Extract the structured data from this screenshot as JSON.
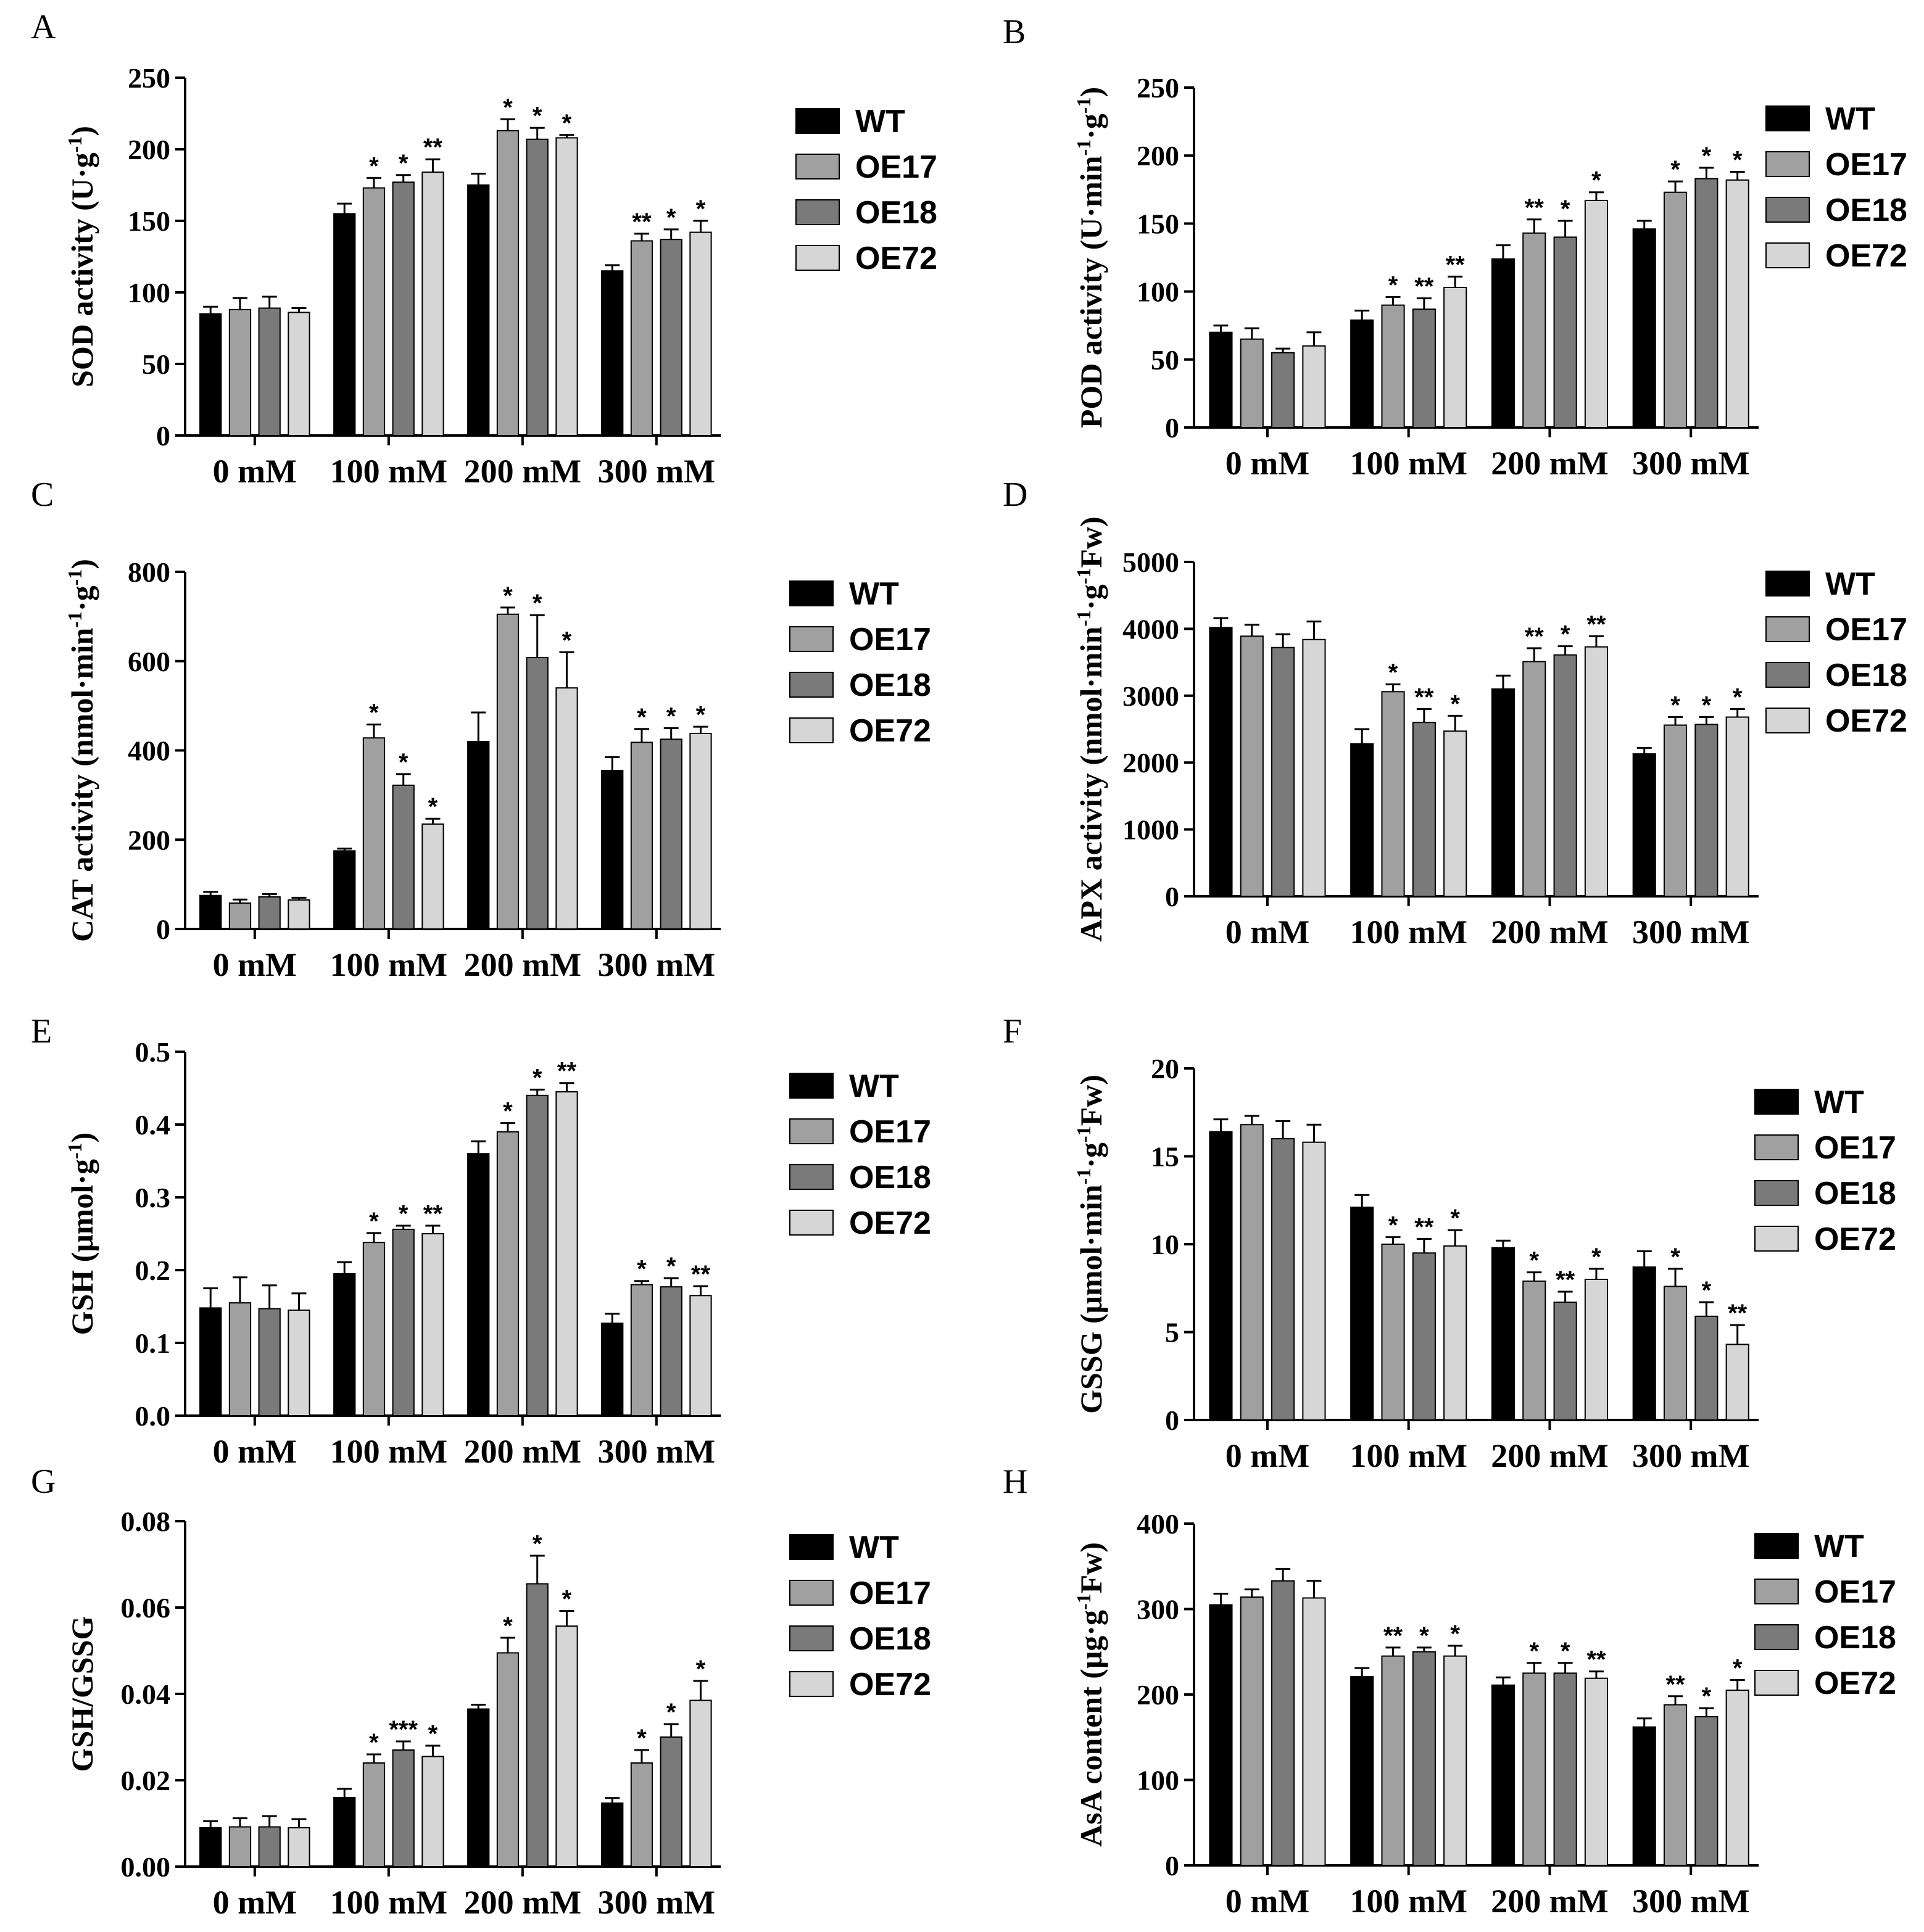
{
  "figure": {
    "legend_labels": [
      "WT",
      "OE17",
      "OE18",
      "OE72"
    ],
    "colors": {
      "WT": "#000000",
      "OE17": "#a0a0a0",
      "OE18": "#7a7a7a",
      "OE72": "#d6d6d6"
    }
  },
  "chart_data": [
    {
      "type": "bar",
      "letter": "A",
      "ylabel": "SOD activity (U·g-1)",
      "ylabel_parts": [
        {
          "t": "SOD activity (U·g"
        },
        {
          "t": "-1",
          "sup": true
        },
        {
          "t": ")"
        }
      ],
      "categories": [
        "0 mM",
        "100 mM",
        "200 mM",
        "300 mM"
      ],
      "ylim": [
        0,
        250
      ],
      "yticks": [
        "0",
        "50",
        "100",
        "150",
        "200",
        "250"
      ],
      "series": [
        {
          "name": "WT",
          "values": [
            85,
            155,
            175,
            115
          ],
          "errors": [
            5,
            7,
            8,
            4
          ],
          "sig": [
            "",
            "",
            "",
            ""
          ]
        },
        {
          "name": "OE17",
          "values": [
            88,
            173,
            213,
            136
          ],
          "errors": [
            8,
            7,
            8,
            5
          ],
          "sig": [
            "",
            "*",
            "*",
            "**"
          ]
        },
        {
          "name": "OE18",
          "values": [
            89,
            177,
            207,
            137
          ],
          "errors": [
            8,
            5,
            8,
            7
          ],
          "sig": [
            "",
            "*",
            "*",
            "*"
          ]
        },
        {
          "name": "OE72",
          "values": [
            86,
            184,
            208,
            142
          ],
          "errors": [
            3,
            9,
            2,
            8
          ],
          "sig": [
            "",
            "**",
            "*",
            "*"
          ]
        }
      ]
    },
    {
      "type": "bar",
      "letter": "B",
      "ylabel": "POD activity (U·min-1·g-1)",
      "ylabel_parts": [
        {
          "t": "POD activity (U·min"
        },
        {
          "t": "-1",
          "sup": true
        },
        {
          "t": "·g"
        },
        {
          "t": "-1",
          "sup": true
        },
        {
          "t": ")"
        }
      ],
      "categories": [
        "0 mM",
        "100 mM",
        "200 mM",
        "300 mM"
      ],
      "ylim": [
        0,
        250
      ],
      "yticks": [
        "0",
        "50",
        "100",
        "150",
        "200",
        "250"
      ],
      "series": [
        {
          "name": "WT",
          "values": [
            70,
            79,
            124,
            146
          ],
          "errors": [
            5,
            7,
            10,
            6
          ],
          "sig": [
            "",
            "",
            "",
            ""
          ]
        },
        {
          "name": "OE17",
          "values": [
            65,
            90,
            143,
            173
          ],
          "errors": [
            8,
            6,
            10,
            8
          ],
          "sig": [
            "",
            "*",
            "**",
            "*"
          ]
        },
        {
          "name": "OE18",
          "values": [
            55,
            87,
            140,
            183
          ],
          "errors": [
            3,
            8,
            12,
            8
          ],
          "sig": [
            "",
            "**",
            "*",
            "*"
          ]
        },
        {
          "name": "OE72",
          "values": [
            60,
            103,
            167,
            182
          ],
          "errors": [
            10,
            8,
            6,
            6
          ],
          "sig": [
            "",
            "**",
            "*",
            "*"
          ]
        }
      ]
    },
    {
      "type": "bar",
      "letter": "C",
      "ylabel": "CAT activity (nmol·min-1·g-1)",
      "ylabel_parts": [
        {
          "t": "CAT activity (nmol·min"
        },
        {
          "t": "-1",
          "sup": true
        },
        {
          "t": "·g"
        },
        {
          "t": "-1",
          "sup": true
        },
        {
          "t": ")"
        }
      ],
      "categories": [
        "0 mM",
        "100 mM",
        "200 mM",
        "300 mM"
      ],
      "ylim": [
        0,
        800
      ],
      "yticks": [
        "0",
        "200",
        "400",
        "600",
        "800"
      ],
      "series": [
        {
          "name": "WT",
          "values": [
            75,
            175,
            420,
            355
          ],
          "errors": [
            8,
            5,
            65,
            30
          ],
          "sig": [
            "",
            "",
            "",
            ""
          ]
        },
        {
          "name": "OE17",
          "values": [
            58,
            428,
            705,
            418
          ],
          "errors": [
            8,
            30,
            15,
            30
          ],
          "sig": [
            "",
            "*",
            "*",
            "*"
          ]
        },
        {
          "name": "OE18",
          "values": [
            72,
            322,
            608,
            425
          ],
          "errors": [
            6,
            25,
            95,
            25
          ],
          "sig": [
            "",
            "*",
            "*",
            "*"
          ]
        },
        {
          "name": "OE72",
          "values": [
            65,
            235,
            540,
            438
          ],
          "errors": [
            5,
            12,
            80,
            15
          ],
          "sig": [
            "",
            "*",
            "*",
            "*"
          ]
        }
      ]
    },
    {
      "type": "bar",
      "letter": "D",
      "ylabel": "APX activity (nmol·min-1·g-1Fw)",
      "ylabel_parts": [
        {
          "t": "APX activity (nmol·min"
        },
        {
          "t": "-1",
          "sup": true
        },
        {
          "t": "·g"
        },
        {
          "t": "-1",
          "sup": true
        },
        {
          "t": "Fw)"
        }
      ],
      "categories": [
        "0 mM",
        "100 mM",
        "200 mM",
        "300 mM"
      ],
      "ylim": [
        0,
        5000
      ],
      "yticks": [
        "0",
        "1000",
        "2000",
        "3000",
        "4000",
        "5000"
      ],
      "series": [
        {
          "name": "WT",
          "values": [
            4020,
            2280,
            3100,
            2130
          ],
          "errors": [
            140,
            220,
            200,
            90
          ],
          "sig": [
            "",
            "",
            "",
            ""
          ]
        },
        {
          "name": "OE17",
          "values": [
            3890,
            3060,
            3510,
            2560
          ],
          "errors": [
            170,
            110,
            200,
            120
          ],
          "sig": [
            "",
            "*",
            "**",
            "*"
          ]
        },
        {
          "name": "OE18",
          "values": [
            3720,
            2600,
            3610,
            2570
          ],
          "errors": [
            200,
            200,
            130,
            110
          ],
          "sig": [
            "",
            "**",
            "*",
            "*"
          ]
        },
        {
          "name": "OE72",
          "values": [
            3840,
            2470,
            3730,
            2680
          ],
          "errors": [
            270,
            230,
            160,
            120
          ],
          "sig": [
            "",
            "*",
            "**",
            "*"
          ]
        }
      ]
    },
    {
      "type": "bar",
      "letter": "E",
      "ylabel": "GSH (μmol·g-1)",
      "ylabel_parts": [
        {
          "t": "GSH (μmol·g"
        },
        {
          "t": "-1",
          "sup": true
        },
        {
          "t": ")"
        }
      ],
      "categories": [
        "0 mM",
        "100 mM",
        "200 mM",
        "300 mM"
      ],
      "ylim": [
        0,
        0.5
      ],
      "yticks": [
        "0.0",
        "0.1",
        "0.2",
        "0.3",
        "0.4",
        "0.5"
      ],
      "series": [
        {
          "name": "WT",
          "values": [
            0.148,
            0.195,
            0.36,
            0.127
          ],
          "errors": [
            0.027,
            0.016,
            0.017,
            0.013
          ],
          "sig": [
            "",
            "",
            "",
            ""
          ]
        },
        {
          "name": "OE17",
          "values": [
            0.155,
            0.238,
            0.39,
            0.18
          ],
          "errors": [
            0.035,
            0.013,
            0.012,
            0.005
          ],
          "sig": [
            "",
            "*",
            "*",
            "*"
          ]
        },
        {
          "name": "OE18",
          "values": [
            0.147,
            0.256,
            0.44,
            0.177
          ],
          "errors": [
            0.032,
            0.005,
            0.008,
            0.012
          ],
          "sig": [
            "",
            "*",
            "*",
            "*"
          ]
        },
        {
          "name": "OE72",
          "values": [
            0.145,
            0.25,
            0.445,
            0.165
          ],
          "errors": [
            0.023,
            0.011,
            0.012,
            0.013
          ],
          "sig": [
            "",
            "**",
            "**",
            "**"
          ]
        }
      ]
    },
    {
      "type": "bar",
      "letter": "F",
      "ylabel": "GSSG (μmol·min-1·g-1Fw)",
      "ylabel_parts": [
        {
          "t": "GSSG (μmol·min"
        },
        {
          "t": "-1",
          "sup": true
        },
        {
          "t": "·g"
        },
        {
          "t": "-1",
          "sup": true
        },
        {
          "t": "Fw)"
        }
      ],
      "categories": [
        "0 mM",
        "100 mM",
        "200 mM",
        "300 mM"
      ],
      "ylim": [
        0,
        20
      ],
      "yticks": [
        "0",
        "5",
        "10",
        "15",
        "20"
      ],
      "series": [
        {
          "name": "WT",
          "values": [
            16.4,
            12.1,
            9.8,
            8.7
          ],
          "errors": [
            0.7,
            0.7,
            0.4,
            0.9
          ],
          "sig": [
            "",
            "",
            "",
            ""
          ]
        },
        {
          "name": "OE17",
          "values": [
            16.8,
            10.0,
            7.9,
            7.6
          ],
          "errors": [
            0.5,
            0.4,
            0.5,
            1.0
          ],
          "sig": [
            "",
            "*",
            "*",
            "*"
          ]
        },
        {
          "name": "OE18",
          "values": [
            16.0,
            9.5,
            6.7,
            5.9
          ],
          "errors": [
            1.0,
            0.8,
            0.6,
            0.8
          ],
          "sig": [
            "",
            "**",
            "**",
            "*"
          ]
        },
        {
          "name": "OE72",
          "values": [
            15.8,
            9.9,
            8.0,
            4.3
          ],
          "errors": [
            1.0,
            0.9,
            0.6,
            1.1
          ],
          "sig": [
            "",
            "*",
            "*",
            "**"
          ]
        }
      ]
    },
    {
      "type": "bar",
      "letter": "G",
      "ylabel": "GSH/GSSG",
      "ylabel_parts": [
        {
          "t": "GSH/GSSG"
        }
      ],
      "categories": [
        "0 mM",
        "100 mM",
        "200 mM",
        "300 mM"
      ],
      "ylim": [
        0,
        0.08
      ],
      "yticks": [
        "0.00",
        "0.02",
        "0.04",
        "0.06",
        "0.08"
      ],
      "series": [
        {
          "name": "WT",
          "values": [
            0.009,
            0.016,
            0.0365,
            0.0147
          ],
          "errors": [
            0.0015,
            0.002,
            0.001,
            0.0012
          ],
          "sig": [
            "",
            "",
            "",
            ""
          ]
        },
        {
          "name": "OE17",
          "values": [
            0.0092,
            0.024,
            0.0495,
            0.024
          ],
          "errors": [
            0.002,
            0.002,
            0.0035,
            0.003
          ],
          "sig": [
            "",
            "*",
            "*",
            "*"
          ]
        },
        {
          "name": "OE18",
          "values": [
            0.0092,
            0.027,
            0.0655,
            0.03
          ],
          "errors": [
            0.0025,
            0.002,
            0.0065,
            0.003
          ],
          "sig": [
            "",
            "***",
            "*",
            "*"
          ]
        },
        {
          "name": "OE72",
          "values": [
            0.009,
            0.0255,
            0.0557,
            0.0385
          ],
          "errors": [
            0.002,
            0.0025,
            0.0035,
            0.0045
          ],
          "sig": [
            "",
            "*",
            "*",
            "*"
          ]
        }
      ]
    },
    {
      "type": "bar",
      "letter": "H",
      "ylabel": "AsA content (μg·g-1Fw)",
      "ylabel_parts": [
        {
          "t": "AsA content (μg·g"
        },
        {
          "t": "-1",
          "sup": true
        },
        {
          "t": "Fw)"
        }
      ],
      "categories": [
        "0 mM",
        "100 mM",
        "200 mM",
        "300 mM"
      ],
      "ylim": [
        0,
        400
      ],
      "yticks": [
        "0",
        "100",
        "200",
        "300",
        "400"
      ],
      "series": [
        {
          "name": "WT",
          "values": [
            305,
            221,
            211,
            162
          ],
          "errors": [
            13,
            10,
            9,
            10
          ],
          "sig": [
            "",
            "",
            "",
            ""
          ]
        },
        {
          "name": "OE17",
          "values": [
            314,
            245,
            225,
            188
          ],
          "errors": [
            9,
            10,
            12,
            10
          ],
          "sig": [
            "",
            "**",
            "*",
            "**"
          ]
        },
        {
          "name": "OE18",
          "values": [
            333,
            250,
            225,
            174
          ],
          "errors": [
            14,
            5,
            12,
            10
          ],
          "sig": [
            "",
            "*",
            "*",
            "*"
          ]
        },
        {
          "name": "OE72",
          "values": [
            313,
            245,
            219,
            205
          ],
          "errors": [
            20,
            12,
            8,
            12
          ],
          "sig": [
            "",
            "*",
            "**",
            "*"
          ]
        }
      ]
    }
  ]
}
